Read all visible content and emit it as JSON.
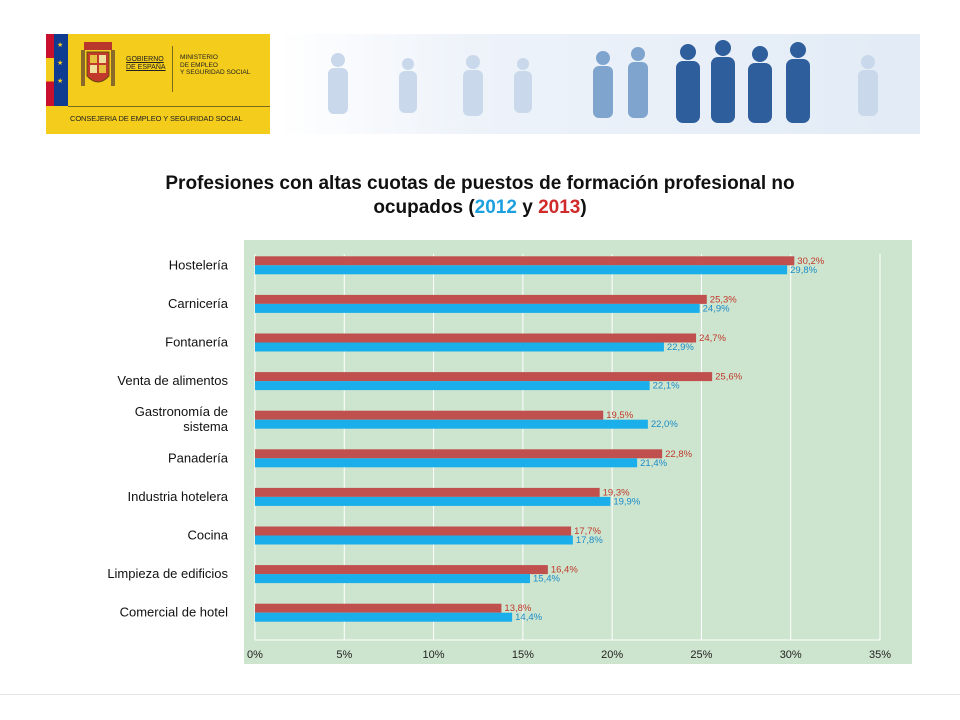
{
  "header": {
    "gobierno": "GOBIERNO\nDE ESPAÑA",
    "ministerio": "MINISTERIO\nDE EMPLEO\nY SEGURIDAD SOCIAL",
    "consejeria": "CONSEJERIA DE EMPLEO Y SEGURIDAD SOCIAL"
  },
  "title": {
    "line1": "Profesiones con altas cuotas de puestos de formación profesional no",
    "line2_pre": "ocupados (",
    "year_2012": "2012",
    "y": " y ",
    "year_2013": "2013",
    "close": ")"
  },
  "colors": {
    "s2012": "#1aaeea",
    "s2013": "#c0504d",
    "plot_bg": "#cde4ce",
    "grid": "#ffffff"
  },
  "chart_data": {
    "type": "bar",
    "orientation": "horizontal",
    "categories": [
      [
        "Hostelería"
      ],
      [
        "Carnicería"
      ],
      [
        "Fontanería"
      ],
      [
        "Venta de alimentos"
      ],
      [
        "Gastronomía de",
        "sistema"
      ],
      [
        "Panadería"
      ],
      [
        "Industria hotelera"
      ],
      [
        "Cocina"
      ],
      [
        "Limpieza de edificios"
      ],
      [
        "Comercial de hotel"
      ]
    ],
    "series": [
      {
        "name": "2013",
        "color": "#c0504d",
        "values": [
          30.2,
          25.3,
          24.7,
          25.6,
          19.5,
          22.8,
          19.3,
          17.7,
          16.4,
          13.8
        ],
        "labels": [
          "30,2%",
          "25,3%",
          "24,7%",
          "25,6%",
          "19,5%",
          "22,8%",
          "19,3%",
          "17,7%",
          "16,4%",
          "13,8%"
        ]
      },
      {
        "name": "2012",
        "color": "#1aaeea",
        "values": [
          29.8,
          24.9,
          22.9,
          22.1,
          22.0,
          21.4,
          19.9,
          17.8,
          15.4,
          14.4
        ],
        "labels": [
          "29,8%",
          "24,9%",
          "22,9%",
          "22,1%",
          "22,0%",
          "21,4%",
          "19,9%",
          "17,8%",
          "15,4%",
          "14,4%"
        ]
      }
    ],
    "xlim": [
      0,
      35
    ],
    "xticks": [
      "0%",
      "5%",
      "10%",
      "15%",
      "20%",
      "25%",
      "30%",
      "35%"
    ],
    "grid": true,
    "legend": "none"
  }
}
